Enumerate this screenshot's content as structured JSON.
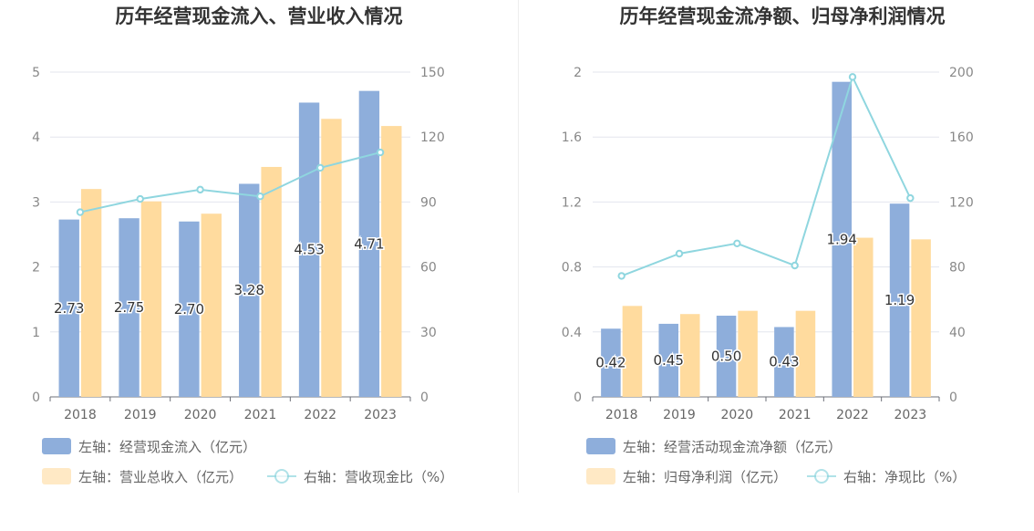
{
  "chart_data": [
    {
      "type": "bar",
      "title": "历年经营现金流入、营业收入情况",
      "categories": [
        "2018",
        "2019",
        "2020",
        "2021",
        "2022",
        "2023"
      ],
      "left_axis": {
        "min": 0,
        "max": 5,
        "ticks": [
          "0",
          "1",
          "2",
          "3",
          "4",
          "5"
        ]
      },
      "right_axis": {
        "min": 0,
        "max": 150,
        "ticks": [
          "0",
          "30",
          "60",
          "90",
          "120",
          "150"
        ]
      },
      "series": [
        {
          "name": "左轴：经营现金流入（亿元）",
          "kind": "bar",
          "axis": "left",
          "color": "#8eaedb",
          "values": [
            2.73,
            2.75,
            2.7,
            3.28,
            4.53,
            4.71
          ],
          "labels": [
            "2.73",
            "2.75",
            "2.70",
            "3.28",
            "4.53",
            "4.71"
          ]
        },
        {
          "name": "左轴：营业总收入（亿元）",
          "kind": "bar",
          "axis": "left",
          "color": "#ffdb9e",
          "values": [
            3.2,
            3.01,
            2.82,
            3.54,
            4.28,
            4.17
          ]
        },
        {
          "name": "右轴：营收现金比（%）",
          "kind": "line",
          "axis": "right",
          "color": "#8fd6df",
          "values": [
            85.3,
            91.4,
            95.7,
            92.6,
            105.8,
            112.9
          ]
        }
      ],
      "legend": "bottom"
    },
    {
      "type": "bar",
      "title": "历年经营现金流净额、归母净利润情况",
      "categories": [
        "2018",
        "2019",
        "2020",
        "2021",
        "2022",
        "2023"
      ],
      "left_axis": {
        "min": 0,
        "max": 2,
        "ticks": [
          "0",
          "0.4",
          "0.8",
          "1.2",
          "1.6",
          "2"
        ]
      },
      "right_axis": {
        "min": 0,
        "max": 200,
        "ticks": [
          "0",
          "40",
          "80",
          "120",
          "160",
          "200"
        ]
      },
      "series": [
        {
          "name": "左轴：经营活动现金流净额（亿元）",
          "kind": "bar",
          "axis": "left",
          "color": "#8eaedb",
          "values": [
            0.42,
            0.45,
            0.5,
            0.43,
            1.94,
            1.19
          ],
          "labels": [
            "0.42",
            "0.45",
            "0.50",
            "0.43",
            "1.94",
            "1.19"
          ]
        },
        {
          "name": "左轴：归母净利润（亿元）",
          "kind": "bar",
          "axis": "left",
          "color": "#ffdb9e",
          "values": [
            0.56,
            0.51,
            0.53,
            0.53,
            0.98,
            0.97
          ]
        },
        {
          "name": "右轴：净现比（%）",
          "kind": "line",
          "axis": "right",
          "color": "#8fd6df",
          "values": [
            74.5,
            88.2,
            94.5,
            80.9,
            197.0,
            122.4
          ]
        }
      ],
      "legend": "bottom"
    }
  ]
}
